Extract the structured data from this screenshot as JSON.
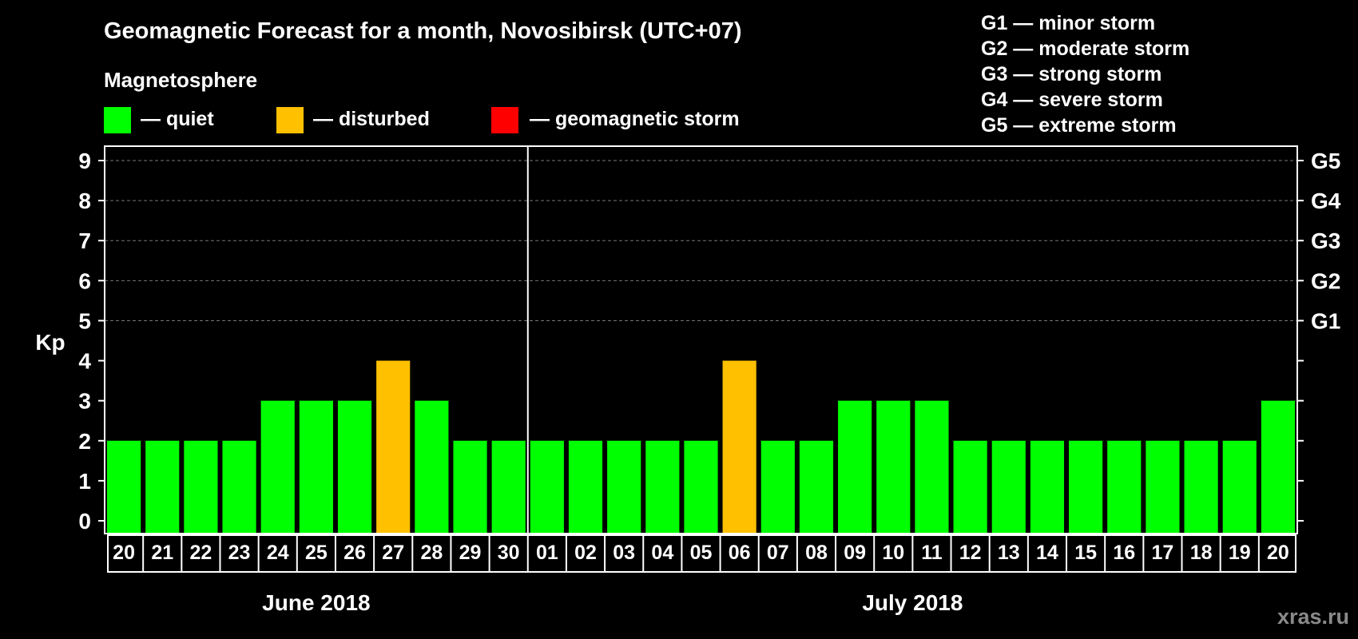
{
  "chart_data": {
    "type": "bar",
    "title": "Geomagnetic Forecast for a month, Novosibirsk (UTC+07)",
    "subtitle": "Magnetosphere",
    "ylabel": "Kp",
    "ylim": [
      0,
      9
    ],
    "yticks": [
      "0",
      "1",
      "2",
      "3",
      "4",
      "5",
      "6",
      "7",
      "8",
      "9"
    ],
    "storm_levels": [
      {
        "kp": 5,
        "label": "G1"
      },
      {
        "kp": 6,
        "label": "G2"
      },
      {
        "kp": 7,
        "label": "G3"
      },
      {
        "kp": 8,
        "label": "G4"
      },
      {
        "kp": 9,
        "label": "G5"
      }
    ],
    "legend": [
      {
        "label": "— quiet",
        "color": "#00ff00"
      },
      {
        "label": "— disturbed",
        "color": "#ffc000"
      },
      {
        "label": "— geomagnetic storm",
        "color": "#ff0000"
      }
    ],
    "storm_scale": [
      "G1 — minor storm",
      "G2 — moderate storm",
      "G3 — strong storm",
      "G4 — severe storm",
      "G5 — extreme storm"
    ],
    "months": [
      {
        "label": "June 2018",
        "start_index": 0,
        "end_index": 10
      },
      {
        "label": "July 2018",
        "start_index": 11,
        "end_index": 30
      }
    ],
    "categories": [
      "20",
      "21",
      "22",
      "23",
      "24",
      "25",
      "26",
      "27",
      "28",
      "29",
      "30",
      "01",
      "02",
      "03",
      "04",
      "05",
      "06",
      "07",
      "08",
      "09",
      "10",
      "11",
      "12",
      "13",
      "14",
      "15",
      "16",
      "17",
      "18",
      "19",
      "20"
    ],
    "values": [
      2,
      2,
      2,
      2,
      3,
      3,
      3,
      4,
      3,
      2,
      2,
      2,
      2,
      2,
      2,
      2,
      4,
      2,
      2,
      3,
      3,
      3,
      2,
      2,
      2,
      2,
      2,
      2,
      2,
      2,
      3
    ],
    "colors": {
      "quiet": "#00ff00",
      "disturbed": "#ffc000",
      "storm": "#ff0000"
    }
  },
  "watermark": "xras.ru"
}
